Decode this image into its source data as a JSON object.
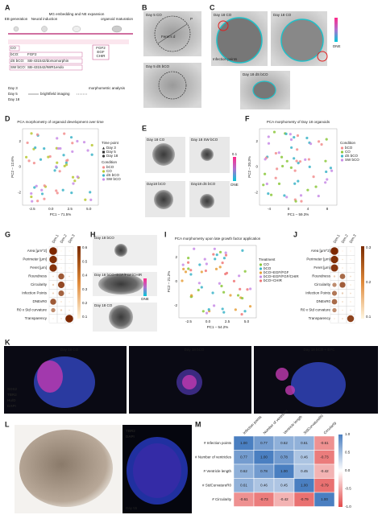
{
  "A": {
    "letter": "A",
    "steps": [
      "EB generation",
      "Neural induction",
      "MG embedding and NE expansion",
      "organoid maturation"
    ],
    "conditions": [
      {
        "name": "CO"
      },
      {
        "name": "bCO:",
        "reagent": "FGF2"
      },
      {
        "name": "dS bCO:",
        "reagent": "SB-431542/dorsomorphin"
      },
      {
        "name": "SW bCO:",
        "reagent": "SB-431542/IWR1endo"
      }
    ],
    "factors": [
      "FGF2",
      "EGF",
      "CHIR"
    ],
    "days": [
      "Day 3",
      "Day 5",
      "Day 18"
    ],
    "imaging": "brightfield imaging",
    "analysis": "morphometric analysis"
  },
  "B": {
    "letter": "B",
    "images": [
      "Day 5 CO",
      "Day 5 dS bCO"
    ],
    "feret": "Feret's d",
    "perimeter": "P"
  },
  "C": {
    "letter": "C",
    "images": [
      "Day 18 CO",
      "Day 18 CO",
      "Day 18 dS bCO"
    ],
    "infection": "Infection points",
    "scale": "DNE"
  },
  "D": {
    "letter": "D",
    "title": "PCA morphometry of organoid development over time",
    "xlabel": "PC1 – 71.5%",
    "ylabel": "PC2 – 12.6%",
    "xticks": [
      "-2.5",
      "0.0",
      "2.5",
      "5.0"
    ],
    "yticks": [
      "2",
      "0",
      "-2"
    ],
    "timepoint_title": "Time point",
    "timepoints": [
      "Day 3",
      "Day 5",
      "Day 18"
    ],
    "condition_title": "Condition",
    "conditions": [
      {
        "name": "bCO",
        "color": "#f28e8e"
      },
      {
        "name": "CO",
        "color": "#b8c832"
      },
      {
        "name": "dS bCO",
        "color": "#3cb4c8"
      },
      {
        "name": "SW bCO",
        "color": "#c88ce6"
      }
    ]
  },
  "E": {
    "letter": "E",
    "images": [
      "Day 18 CO",
      "Day 18 SW bCO",
      "Day18 bCO",
      "Day18 dS bCO"
    ],
    "scale_top": "0.1",
    "scale": "DNE"
  },
  "F": {
    "letter": "F",
    "title": "PCA morphometry of Day 18 organoids",
    "xlabel": "PC1 – 59.3%",
    "ylabel": "PC2 – 20.3%",
    "xticks": [
      "-4",
      "0",
      "4",
      "8"
    ],
    "yticks": [
      "2",
      "0",
      "-2"
    ],
    "condition_title": "Condition",
    "conditions": [
      {
        "name": "bCO",
        "color": "#f28e8e"
      },
      {
        "name": "CO",
        "color": "#8cc83c"
      },
      {
        "name": "dS bCO",
        "color": "#3cb4c8"
      },
      {
        "name": "SW bCO",
        "color": "#c88ce6"
      }
    ]
  },
  "G": {
    "letter": "G",
    "dims": [
      "Dim.1",
      "Dim.2",
      "Dim.3"
    ],
    "variables": [
      "Area [μm^2]",
      "Perimeter [μm]",
      "Feret [μm]",
      "Roundness",
      "Circularity",
      "Infection Points",
      "DNEvR0",
      "R0 x Std curvature",
      "Transparency"
    ],
    "values": [
      [
        0.6,
        0.01,
        0.01
      ],
      [
        0.58,
        0.02,
        0.01
      ],
      [
        0.57,
        0.02,
        0.01
      ],
      [
        0.05,
        0.45,
        0.05
      ],
      [
        0.1,
        0.5,
        0.02
      ],
      [
        0.08,
        0.42,
        0.05
      ],
      [
        0.45,
        0.05,
        0.02
      ],
      [
        0.3,
        0.1,
        0.05
      ],
      [
        0.02,
        0.05,
        0.6
      ]
    ],
    "lim": [
      0,
      0.6
    ],
    "scale_ticks": [
      "0.6",
      "0.5",
      "0.4",
      "0.3",
      "0.2",
      "0.1"
    ]
  },
  "H": {
    "letter": "H",
    "images": [
      "Day 18 bCO",
      "Day 18 bCO+EGF/FGF/CHIR",
      "Day 18 CO"
    ],
    "scale": "DNE"
  },
  "I": {
    "letter": "I",
    "title": "PCA morphometry upon late growth factor application",
    "xlabel": "PC1 – 54.2%",
    "ylabel": "PC2 – 21.2%",
    "xticks": [
      "-2.5",
      "0.0",
      "2.5",
      "5.0"
    ],
    "yticks": [
      "2",
      "0",
      "-2"
    ],
    "treatment_title": "Treatment",
    "treatments": [
      {
        "name": "CO",
        "color": "#8cc83c"
      },
      {
        "name": "bCO",
        "color": "#3cb4c8"
      },
      {
        "name": "bCO+EGF/FGF",
        "color": "#e6a03c"
      },
      {
        "name": "bCO+EGF/FGF/CHIR",
        "color": "#c88ce6"
      },
      {
        "name": "bCO+CHIR",
        "color": "#f07878"
      }
    ]
  },
  "J": {
    "letter": "J",
    "dims": [
      "Dim.1",
      "Dim.2",
      "Dim.3"
    ],
    "variables": [
      "Area [μm^2]",
      "Perimeter [μm]",
      "Feret [μm]",
      "Roundness",
      "Circularity",
      "Infection Points",
      "DNEvR0",
      "R0 x Std curvature",
      "Transparency"
    ],
    "values": [
      [
        0.3,
        0.01,
        0.01
      ],
      [
        0.29,
        0.02,
        0.01
      ],
      [
        0.28,
        0.02,
        0.01
      ],
      [
        0.05,
        0.2,
        0.03
      ],
      [
        0.15,
        0.22,
        0.02
      ],
      [
        0.18,
        0.05,
        0.03
      ],
      [
        0.2,
        0.03,
        0.02
      ],
      [
        0.15,
        0.02,
        0.03
      ],
      [
        0.02,
        0.03,
        0.26
      ]
    ],
    "lim": [
      0,
      0.3
    ],
    "scale_ticks": [
      "0.3",
      "0.2",
      "0.1"
    ]
  },
  "K": {
    "letter": "K",
    "images": [
      "Day 18 CO",
      "Day 18 bCO",
      "Day 18 bCO + EFC"
    ],
    "channels": [
      {
        "name": "SOX2",
        "color": "#ff5a5a"
      },
      {
        "name": "TBR2",
        "color": "#ffffff"
      },
      {
        "name": "Hu/D",
        "color": "#5aff5a"
      },
      {
        "name": "DAPI",
        "color": "#6a8cff"
      }
    ]
  },
  "L": {
    "letter": "L",
    "channels": [
      {
        "name": "TBR2",
        "color": "#ffffff"
      },
      {
        "name": "DAPI",
        "color": "#6a8cff"
      }
    ],
    "day": "Day 55"
  },
  "M": {
    "letter": "M",
    "columns": [
      "Infection points",
      "Number of ventricles",
      "Ventricle length",
      "StdCurvatureR0",
      "Circularity"
    ],
    "rows": [
      {
        "label": "# Infection points",
        "values": [
          "1.00",
          "0.77",
          "0.62",
          "0.61",
          "-0.61"
        ]
      },
      {
        "label": "# Number of ventricles",
        "values": [
          "0.77",
          "1.00",
          "0.78",
          "0.46",
          "-0.73"
        ]
      },
      {
        "label": "# Ventricle length",
        "values": [
          "0.62",
          "0.78",
          "1.00",
          "0.45",
          "-0.42"
        ]
      },
      {
        "label": "# StdCurvatureR0",
        "values": [
          "0.61",
          "0.46",
          "0.45",
          "1.00",
          "-0.79"
        ]
      },
      {
        "label": "# Circularity",
        "values": [
          "-0.61",
          "-0.73",
          "-0.42",
          "-0.79",
          "1.00"
        ]
      }
    ],
    "scale_ticks": [
      "1.0",
      "0.5",
      "0.0",
      "-0.5",
      "-1.0"
    ]
  }
}
